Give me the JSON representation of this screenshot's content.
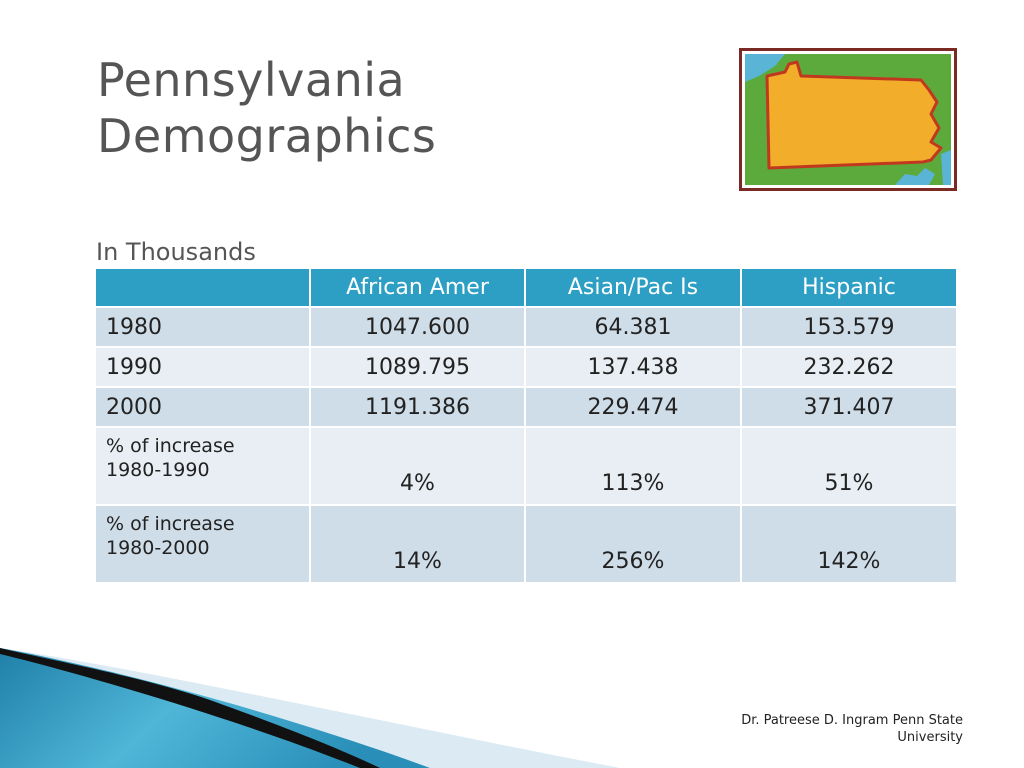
{
  "slide": {
    "title": "Pennsylvania\nDemographics",
    "subtitle": "In Thousands",
    "footer": "Dr. Patreese D. Ingram   Penn State\nUniversity"
  },
  "map": {
    "icon": "pennsylvania-map-icon",
    "colors": {
      "frame": "#7a2a22",
      "water": "#5ab4d6",
      "land": "#5caa3c",
      "state": "#f2ad2a",
      "outline": "#c0391f"
    }
  },
  "table": {
    "headers": [
      "",
      "African Amer",
      "Asian/Pac Is",
      "Hispanic"
    ],
    "rows": [
      {
        "label": "1980",
        "cells": [
          "1047.600",
          "64.381",
          "153.579"
        ]
      },
      {
        "label": "1990",
        "cells": [
          "1089.795",
          "137.438",
          "232.262"
        ]
      },
      {
        "label": "2000",
        "cells": [
          "1191.386",
          "229.474",
          "371.407"
        ]
      },
      {
        "label": "% of increase\n1980-1990",
        "cells": [
          "4%",
          "113%",
          "51%"
        ]
      },
      {
        "label": "% of increase\n1980-2000",
        "cells": [
          "14%",
          "256%",
          "142%"
        ]
      }
    ],
    "colors": {
      "header": "#2e9fc4",
      "row_odd": "#cfdde8",
      "row_even": "#e8eef3"
    }
  }
}
